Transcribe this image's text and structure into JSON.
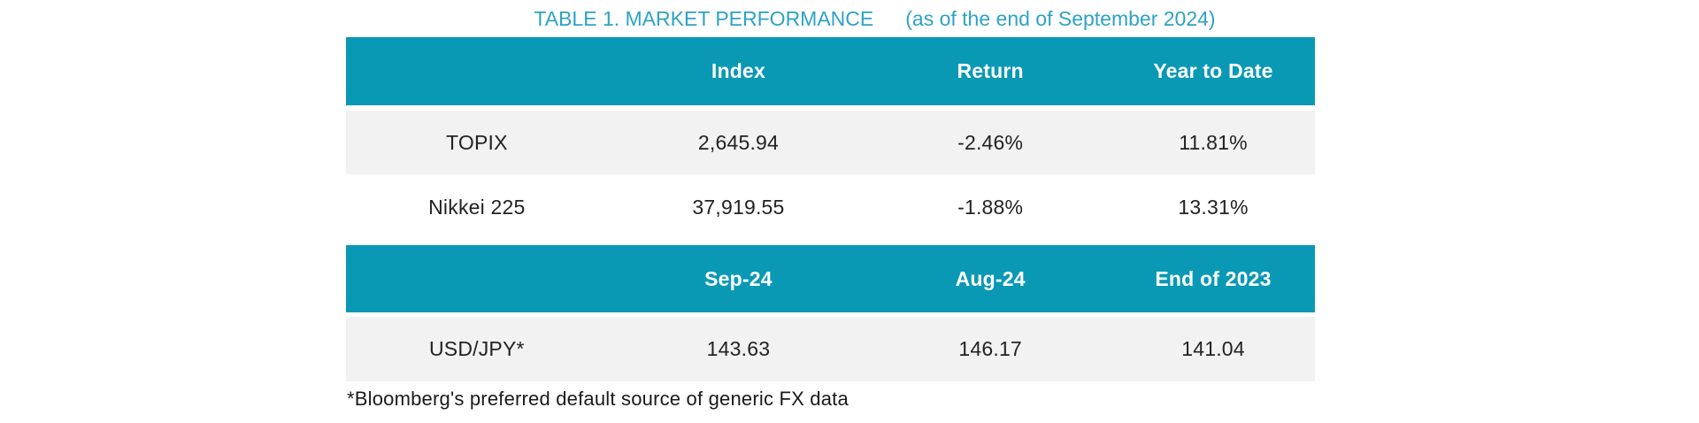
{
  "title": {
    "main": "TABLE 1. MARKET PERFORMANCE",
    "date_note": "(as of the end of September 2024)"
  },
  "colors": {
    "header_bg": "#0999b4",
    "header_text": "#ffffff",
    "title_text": "#2ea3c3",
    "alt_row_bg": "#f2f2f2",
    "body_text": "#222222"
  },
  "index_table": {
    "headers": {
      "label": "",
      "index": "Index",
      "return": "Return",
      "ytd": "Year to Date"
    },
    "rows": [
      {
        "label": "TOPIX",
        "index": "2,645.94",
        "return": "-2.46%",
        "ytd": "11.81%"
      },
      {
        "label": "Nikkei 225",
        "index": "37,919.55",
        "return": "-1.88%",
        "ytd": "13.31%"
      }
    ]
  },
  "fx_table": {
    "headers": {
      "label": "",
      "sep24": "Sep-24",
      "aug24": "Aug-24",
      "end2023": "End of 2023"
    },
    "rows": [
      {
        "label": "USD/JPY*",
        "sep24": "143.63",
        "aug24": "146.17",
        "end2023": "141.04"
      }
    ]
  },
  "footnote": "*Bloomberg's preferred default source of generic FX data"
}
